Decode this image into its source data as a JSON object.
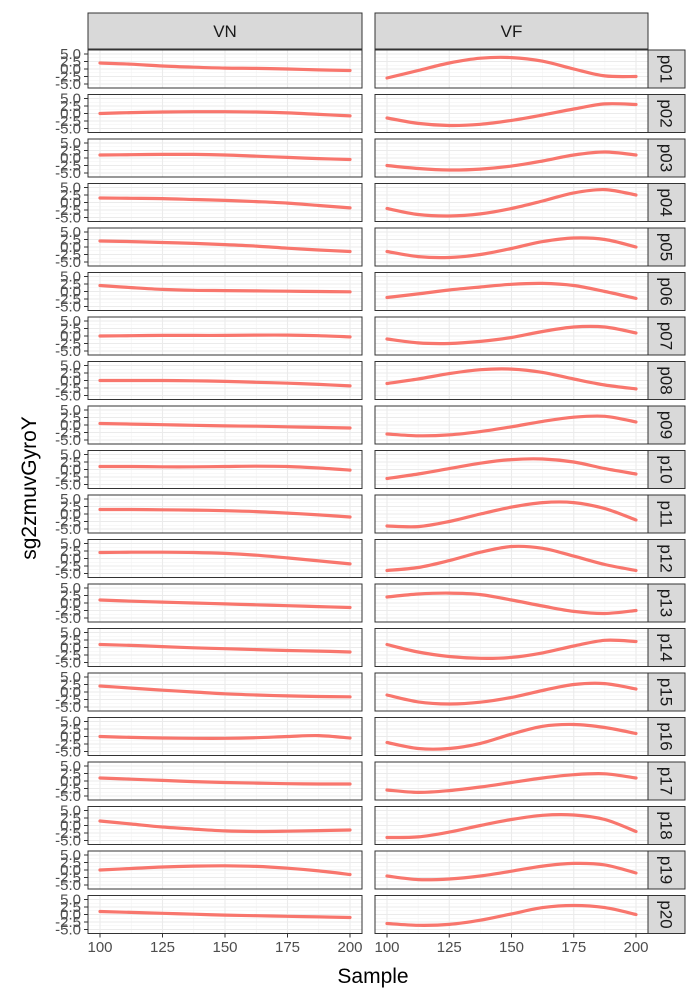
{
  "chart_data": {
    "type": "line",
    "title": "",
    "xlabel": "Sample",
    "ylabel": "sg2zmuvGyroY",
    "xlim": [
      100,
      200
    ],
    "ylim": [
      -5.0,
      5.0
    ],
    "x_ticks": [
      100,
      125,
      150,
      175,
      200
    ],
    "x_tick_labels": [
      "100",
      "125",
      "150",
      "175",
      "200"
    ],
    "y_ticks": [
      -5.0,
      -2.5,
      0.0,
      2.5,
      5.0
    ],
    "y_tick_labels": [
      "-5.0",
      "-2.5",
      "0.0",
      "2.5",
      "5.0"
    ],
    "grid": true,
    "legend": "none",
    "line_color": "#F8766D",
    "columns": [
      "VN",
      "VF"
    ],
    "rows": [
      "p01",
      "p02",
      "p03",
      "p04",
      "p05",
      "p06",
      "p07",
      "p08",
      "p09",
      "p10",
      "p11",
      "p12",
      "p13",
      "p14",
      "p15",
      "p16",
      "p17",
      "p18",
      "p19",
      "p20"
    ],
    "x": [
      100,
      112.5,
      125,
      137.5,
      150,
      162.5,
      175,
      187.5,
      200
    ],
    "panels": {
      "VN": [
        [
          2.0,
          1.6,
          1.0,
          0.6,
          0.3,
          0.2,
          0.0,
          -0.3,
          -0.5
        ],
        [
          0.0,
          0.3,
          0.5,
          0.6,
          0.6,
          0.5,
          0.2,
          -0.3,
          -0.8
        ],
        [
          1.0,
          1.1,
          1.2,
          1.2,
          1.0,
          0.6,
          0.2,
          -0.2,
          -0.5
        ],
        [
          1.5,
          1.4,
          1.3,
          1.0,
          0.7,
          0.3,
          -0.2,
          -1.0,
          -1.8
        ],
        [
          2.0,
          1.8,
          1.5,
          1.2,
          0.8,
          0.3,
          -0.4,
          -1.0,
          -1.5
        ],
        [
          2.0,
          1.3,
          0.7,
          0.4,
          0.3,
          0.2,
          0.1,
          0.0,
          -0.1
        ],
        [
          0.0,
          0.1,
          0.2,
          0.2,
          0.2,
          0.3,
          0.3,
          0.1,
          -0.3
        ],
        [
          0.0,
          0.0,
          0.0,
          -0.1,
          -0.3,
          -0.6,
          -0.9,
          -1.3,
          -1.8
        ],
        [
          0.5,
          0.3,
          0.1,
          -0.1,
          -0.3,
          -0.4,
          -0.6,
          -0.8,
          -1.0
        ],
        [
          1.0,
          1.0,
          0.9,
          0.9,
          1.0,
          1.1,
          1.0,
          0.5,
          -0.2
        ],
        [
          1.5,
          1.5,
          1.4,
          1.3,
          1.1,
          0.8,
          0.3,
          -0.3,
          -1.0
        ],
        [
          2.0,
          2.1,
          2.1,
          2.0,
          1.7,
          1.1,
          0.2,
          -0.8,
          -1.8
        ],
        [
          1.0,
          0.6,
          0.3,
          0.0,
          -0.3,
          -0.6,
          -0.9,
          -1.2,
          -1.5
        ],
        [
          1.0,
          0.7,
          0.3,
          -0.1,
          -0.4,
          -0.7,
          -1.0,
          -1.2,
          -1.5
        ],
        [
          2.0,
          1.3,
          0.6,
          0.0,
          -0.6,
          -1.0,
          -1.3,
          -1.5,
          -1.6
        ],
        [
          0.0,
          -0.3,
          -0.5,
          -0.6,
          -0.6,
          -0.4,
          0.0,
          0.3,
          -0.5
        ],
        [
          1.0,
          0.6,
          0.2,
          -0.2,
          -0.5,
          -0.7,
          -0.9,
          -1.0,
          -1.0
        ],
        [
          1.5,
          0.5,
          -0.5,
          -1.2,
          -1.8,
          -2.0,
          -1.9,
          -1.7,
          -1.5
        ],
        [
          0.0,
          0.5,
          1.0,
          1.3,
          1.4,
          1.2,
          0.6,
          -0.3,
          -1.5
        ],
        [
          1.0,
          0.7,
          0.4,
          0.1,
          -0.2,
          -0.4,
          -0.6,
          -0.8,
          -1.0
        ]
      ],
      "VF": [
        [
          -3.0,
          -0.5,
          2.0,
          3.6,
          3.8,
          2.6,
          0.0,
          -2.3,
          -2.5
        ],
        [
          -1.5,
          -3.3,
          -4.0,
          -3.6,
          -2.3,
          -0.5,
          1.5,
          3.2,
          3.0
        ],
        [
          -2.5,
          -3.5,
          -4.0,
          -3.7,
          -2.7,
          -1.0,
          1.0,
          2.0,
          1.0
        ],
        [
          -2.0,
          -4.0,
          -4.5,
          -3.8,
          -2.0,
          0.5,
          3.2,
          4.3,
          2.5
        ],
        [
          -1.5,
          -3.2,
          -3.5,
          -2.5,
          -0.5,
          1.8,
          3.0,
          2.5,
          0.0
        ],
        [
          -2.0,
          -0.8,
          0.5,
          1.5,
          2.4,
          2.7,
          2.0,
          0.0,
          -2.3
        ],
        [
          -1.0,
          -2.3,
          -2.5,
          -1.8,
          -0.5,
          1.5,
          3.0,
          3.0,
          1.0
        ],
        [
          -1.0,
          0.5,
          2.3,
          3.6,
          3.8,
          2.7,
          0.5,
          -1.5,
          -2.8
        ],
        [
          -3.0,
          -3.6,
          -3.3,
          -2.2,
          -0.6,
          1.2,
          2.6,
          2.9,
          1.0
        ],
        [
          -3.0,
          -1.5,
          0.3,
          2.1,
          3.3,
          3.5,
          2.5,
          0.3,
          -1.5
        ],
        [
          -4.0,
          -4.2,
          -2.5,
          0.0,
          2.3,
          3.8,
          3.8,
          1.8,
          -2.0
        ],
        [
          -4.0,
          -3.0,
          -0.7,
          2.1,
          4.0,
          3.4,
          0.8,
          -2.0,
          -4.0
        ],
        [
          2.0,
          3.0,
          3.3,
          2.8,
          1.0,
          -1.0,
          -2.8,
          -3.5,
          -2.5
        ],
        [
          1.0,
          -1.5,
          -3.0,
          -3.6,
          -3.3,
          -1.8,
          0.5,
          2.4,
          2.0
        ],
        [
          -1.0,
          -3.3,
          -4.0,
          -3.4,
          -1.8,
          0.5,
          2.5,
          2.8,
          1.0
        ],
        [
          -2.0,
          -4.0,
          -4.0,
          -2.3,
          0.8,
          3.4,
          4.0,
          3.0,
          1.0
        ],
        [
          -3.0,
          -3.8,
          -3.2,
          -2.0,
          -0.5,
          1.0,
          2.1,
          2.4,
          1.0
        ],
        [
          -4.0,
          -3.8,
          -2.2,
          0.0,
          2.0,
          3.4,
          3.5,
          2.0,
          -2.0
        ],
        [
          -2.0,
          -3.2,
          -3.0,
          -2.0,
          -0.4,
          1.3,
          2.2,
          1.7,
          -1.0
        ],
        [
          -3.0,
          -3.6,
          -3.3,
          -1.9,
          0.2,
          2.3,
          3.0,
          2.3,
          0.0
        ]
      ]
    }
  }
}
